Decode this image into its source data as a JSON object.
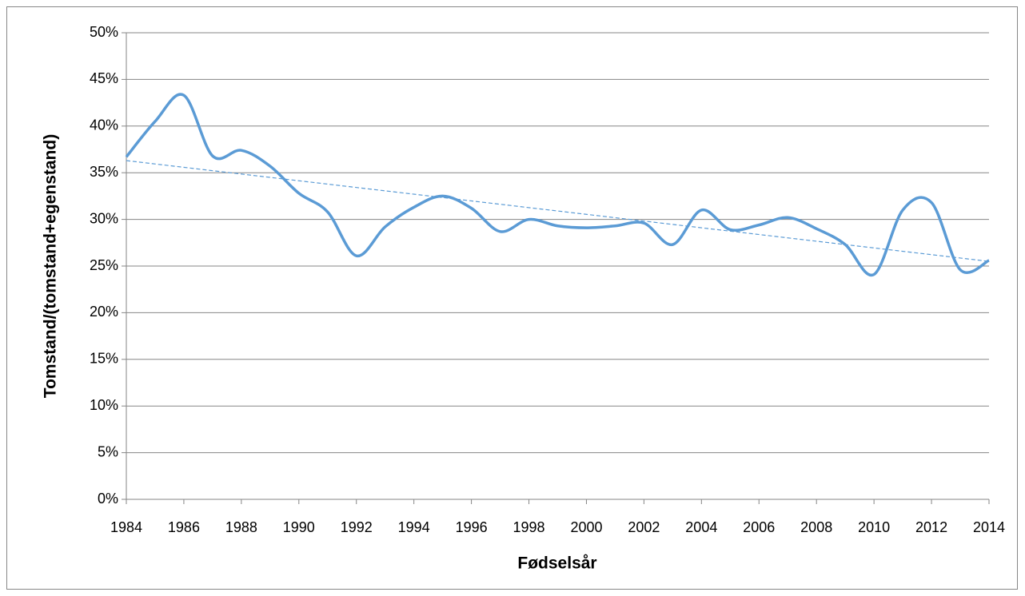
{
  "chart_data": {
    "type": "line",
    "x_label": "Fødselsår",
    "y_label": "Tomstand/(tomstand+egenstand)",
    "x": [
      1984,
      1985,
      1986,
      1987,
      1988,
      1989,
      1990,
      1991,
      1992,
      1993,
      1994,
      1995,
      1996,
      1997,
      1998,
      1999,
      2000,
      2001,
      2002,
      2003,
      2004,
      2005,
      2006,
      2007,
      2008,
      2009,
      2010,
      2011,
      2012,
      2013,
      2014
    ],
    "series": [
      {
        "color": "#5b9bd5",
        "values": [
          36.7,
          40.5,
          43.3,
          36.8,
          37.4,
          35.7,
          32.8,
          30.8,
          26.1,
          29.2,
          31.3,
          32.5,
          31.2,
          28.7,
          30.0,
          29.3,
          29.1,
          29.3,
          29.6,
          27.3,
          31.0,
          28.9,
          29.4,
          30.2,
          29.0,
          27.3,
          24.1,
          31.0,
          31.8,
          24.6,
          25.6
        ]
      }
    ],
    "trend": {
      "color": "#5b9bd5",
      "x": [
        1984,
        2014
      ],
      "values": [
        36.3,
        25.5
      ]
    },
    "xlim": [
      1984,
      2014
    ],
    "xticks": [
      1984,
      1986,
      1988,
      1990,
      1992,
      1994,
      1996,
      1998,
      2000,
      2002,
      2004,
      2006,
      2008,
      2010,
      2012,
      2014
    ],
    "ylim": [
      0,
      50
    ],
    "yticks": [
      {
        "value": 0,
        "label": "0%"
      },
      {
        "value": 5,
        "label": "5%"
      },
      {
        "value": 10,
        "label": "10%"
      },
      {
        "value": 15,
        "label": "15%"
      },
      {
        "value": 20,
        "label": "20%"
      },
      {
        "value": 25,
        "label": "25%"
      },
      {
        "value": 30,
        "label": "30%"
      },
      {
        "value": 35,
        "label": "35%"
      },
      {
        "value": 40,
        "label": "40%"
      },
      {
        "value": 45,
        "label": "45%"
      },
      {
        "value": 50,
        "label": "50%"
      }
    ],
    "grid": true
  }
}
